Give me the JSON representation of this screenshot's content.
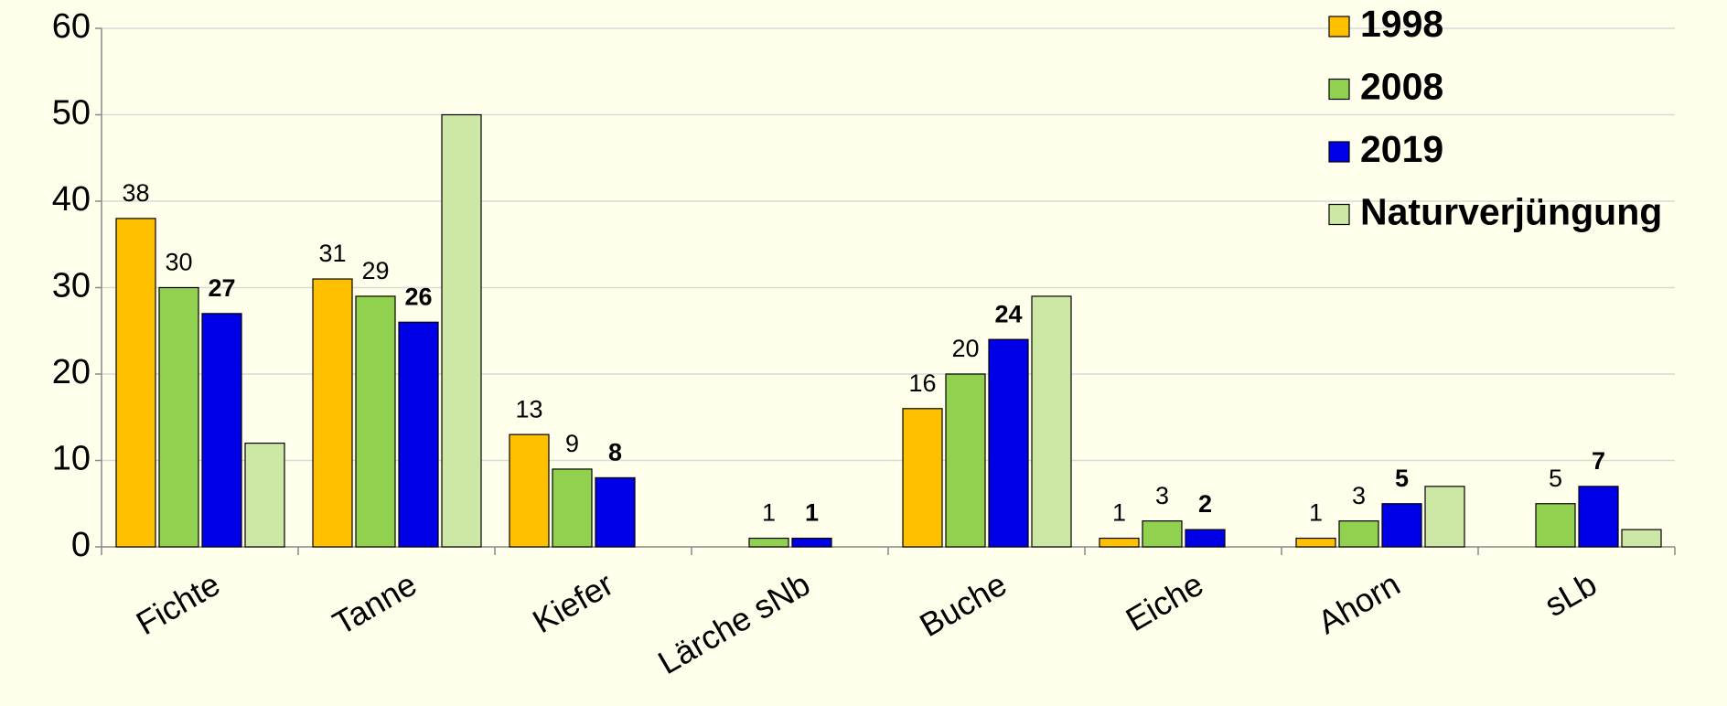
{
  "chart_data": {
    "type": "bar",
    "categories": [
      "Fichte",
      "Tanne",
      "Kiefer",
      "Lärche sNb",
      "Buche",
      "Eiche",
      "Ahorn",
      "sLb"
    ],
    "series": [
      {
        "name": "1998",
        "color": "#FFC000",
        "values": [
          38,
          31,
          13,
          null,
          16,
          1,
          1,
          null
        ],
        "show_labels": true,
        "label_weight": "normal"
      },
      {
        "name": "2008",
        "color": "#92D050",
        "values": [
          30,
          29,
          9,
          1,
          20,
          3,
          3,
          5
        ],
        "show_labels": true,
        "label_weight": "normal"
      },
      {
        "name": "2019",
        "color": "#0000E6",
        "values": [
          27,
          26,
          8,
          1,
          24,
          2,
          5,
          7
        ],
        "show_labels": true,
        "label_weight": "bold"
      },
      {
        "name": "Naturverjüngung",
        "color": "#CDE7A5",
        "values": [
          12,
          50,
          null,
          null,
          29,
          null,
          7,
          2
        ],
        "show_labels": false,
        "label_weight": "normal"
      }
    ],
    "ylim": [
      0,
      60
    ],
    "yticks": [
      0,
      10,
      20,
      30,
      40,
      50,
      60
    ],
    "grid": true,
    "legend": "top-right"
  }
}
